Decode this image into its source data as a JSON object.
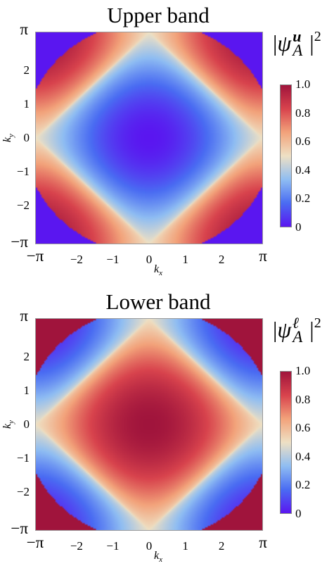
{
  "chart_data": [
    {
      "type": "heatmap",
      "title": "Upper band",
      "xlabel": "k",
      "xlabel_sub": "x",
      "ylabel": "k",
      "ylabel_sub": "y",
      "xlim": [
        -3.14159,
        3.14159
      ],
      "ylim": [
        -3.14159,
        3.14159
      ],
      "x_ticks": [
        -3.14159,
        -2,
        -1,
        0,
        1,
        2,
        3.14159
      ],
      "x_tick_labels": [
        "−π",
        "−2",
        "−1",
        "0",
        "1",
        "2",
        "π"
      ],
      "y_ticks": [
        -3.14159,
        -2,
        -1,
        0,
        1,
        2,
        3.14159
      ],
      "y_tick_labels": [
        "−π",
        "−2",
        "−1",
        "0",
        "1",
        "2",
        "π"
      ],
      "colorbar_label": {
        "symbol": "ψ",
        "superscript": "u",
        "subscript": "A",
        "power": "2"
      },
      "colorbar_ticks": [
        0,
        0.2,
        0.4,
        0.6,
        0.8,
        1.0
      ],
      "colorbar_tick_labels": [
        "0",
        "0.2",
        "0.4",
        "0.6",
        "0.8",
        "1.0"
      ],
      "colormap": [
        "#5a16f0",
        "#4a6cf2",
        "#8fbdf2",
        "#eee0c4",
        "#f2a27a",
        "#d8434d",
        "#a0143c"
      ],
      "value_range": [
        0,
        1
      ],
      "description_values": {
        "center_value": 0.25,
        "edge_mid_value": 1.0,
        "corner_value": 0.0
      }
    },
    {
      "type": "heatmap",
      "title": "Lower band",
      "xlabel": "k",
      "xlabel_sub": "x",
      "ylabel": "k",
      "ylabel_sub": "y",
      "xlim": [
        -3.14159,
        3.14159
      ],
      "ylim": [
        -3.14159,
        3.14159
      ],
      "x_ticks": [
        -3.14159,
        -2,
        -1,
        0,
        1,
        2,
        3.14159
      ],
      "x_tick_labels": [
        "−π",
        "−2",
        "−1",
        "0",
        "1",
        "2",
        "π"
      ],
      "y_ticks": [
        -3.14159,
        -2,
        -1,
        0,
        1,
        2,
        3.14159
      ],
      "y_tick_labels": [
        "−π",
        "−2",
        "−1",
        "0",
        "1",
        "2",
        "π"
      ],
      "colorbar_label": {
        "symbol": "ψ",
        "superscript": "ℓ",
        "subscript": "A",
        "power": "2"
      },
      "colorbar_ticks": [
        0,
        0.2,
        0.4,
        0.6,
        0.8,
        1.0
      ],
      "colorbar_tick_labels": [
        "0",
        "0.2",
        "0.4",
        "0.6",
        "0.8",
        "1.0"
      ],
      "colormap": [
        "#5a16f0",
        "#4a6cf2",
        "#8fbdf2",
        "#eee0c4",
        "#f2a27a",
        "#d8434d",
        "#a0143c"
      ],
      "value_range": [
        0,
        1
      ],
      "description_values": {
        "center_value": 0.75,
        "edge_mid_value": 0.0,
        "corner_value": 1.0
      }
    }
  ]
}
